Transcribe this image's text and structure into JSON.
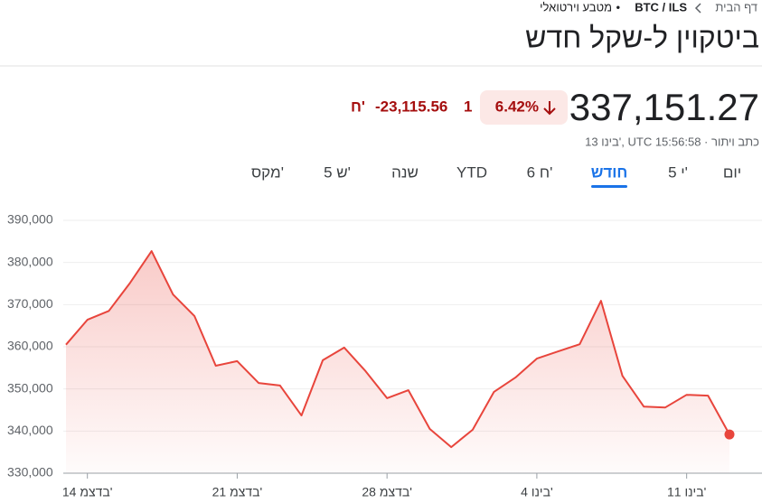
{
  "header": {
    "home": "דף הבית",
    "pair": "BTC / ILS",
    "separator": "•",
    "category": "מטבע וירטואלי",
    "title": "ביטקוין ל-שקל חדש"
  },
  "quote": {
    "price": "337,151.27",
    "change_percent": "6.42%",
    "change": "-23,115.56",
    "change_unit": "ח'",
    "change_extra": "1",
    "timestamp": "13 בינו', UTC 15:56:58 · כתב ויתור"
  },
  "tabs": [
    {
      "label": "יום"
    },
    {
      "label": "5 י'"
    },
    {
      "label": "חודש",
      "active": true
    },
    {
      "label": "6 ח'"
    },
    {
      "label": "YTD"
    },
    {
      "label": "שנה"
    },
    {
      "label": "5 ש'"
    },
    {
      "label": "מקס'"
    }
  ],
  "chart_data": {
    "type": "line",
    "color": "#e8453c",
    "grid": true,
    "categories": [
      null,
      "14 בדצמ'",
      null,
      null,
      null,
      null,
      null,
      null,
      "21 בדצמ'",
      null,
      null,
      null,
      null,
      null,
      null,
      "28 בדצמ'",
      null,
      null,
      null,
      null,
      null,
      null,
      "4 בינו'",
      null,
      null,
      null,
      null,
      null,
      null,
      "11 בינו'",
      null,
      null
    ],
    "values": [
      360500,
      366400,
      368500,
      375200,
      382700,
      372400,
      367300,
      355500,
      356600,
      351400,
      350800,
      343700,
      356800,
      359800,
      354200,
      347800,
      349700,
      340500,
      336200,
      340300,
      349300,
      352700,
      357200,
      358900,
      360600,
      370900,
      353100,
      345800,
      345600,
      348600,
      348400,
      339200
    ],
    "ylim": [
      330000,
      390000
    ],
    "yticks": [
      {
        "value": 330000,
        "label": "330,000"
      },
      {
        "value": 340000,
        "label": "340,000"
      },
      {
        "value": 350000,
        "label": "350,000"
      },
      {
        "value": 360000,
        "label": "360,000"
      },
      {
        "value": 370000,
        "label": "370,000"
      },
      {
        "value": 380000,
        "label": "380,000"
      },
      {
        "value": 390000,
        "label": "390,000"
      }
    ]
  }
}
